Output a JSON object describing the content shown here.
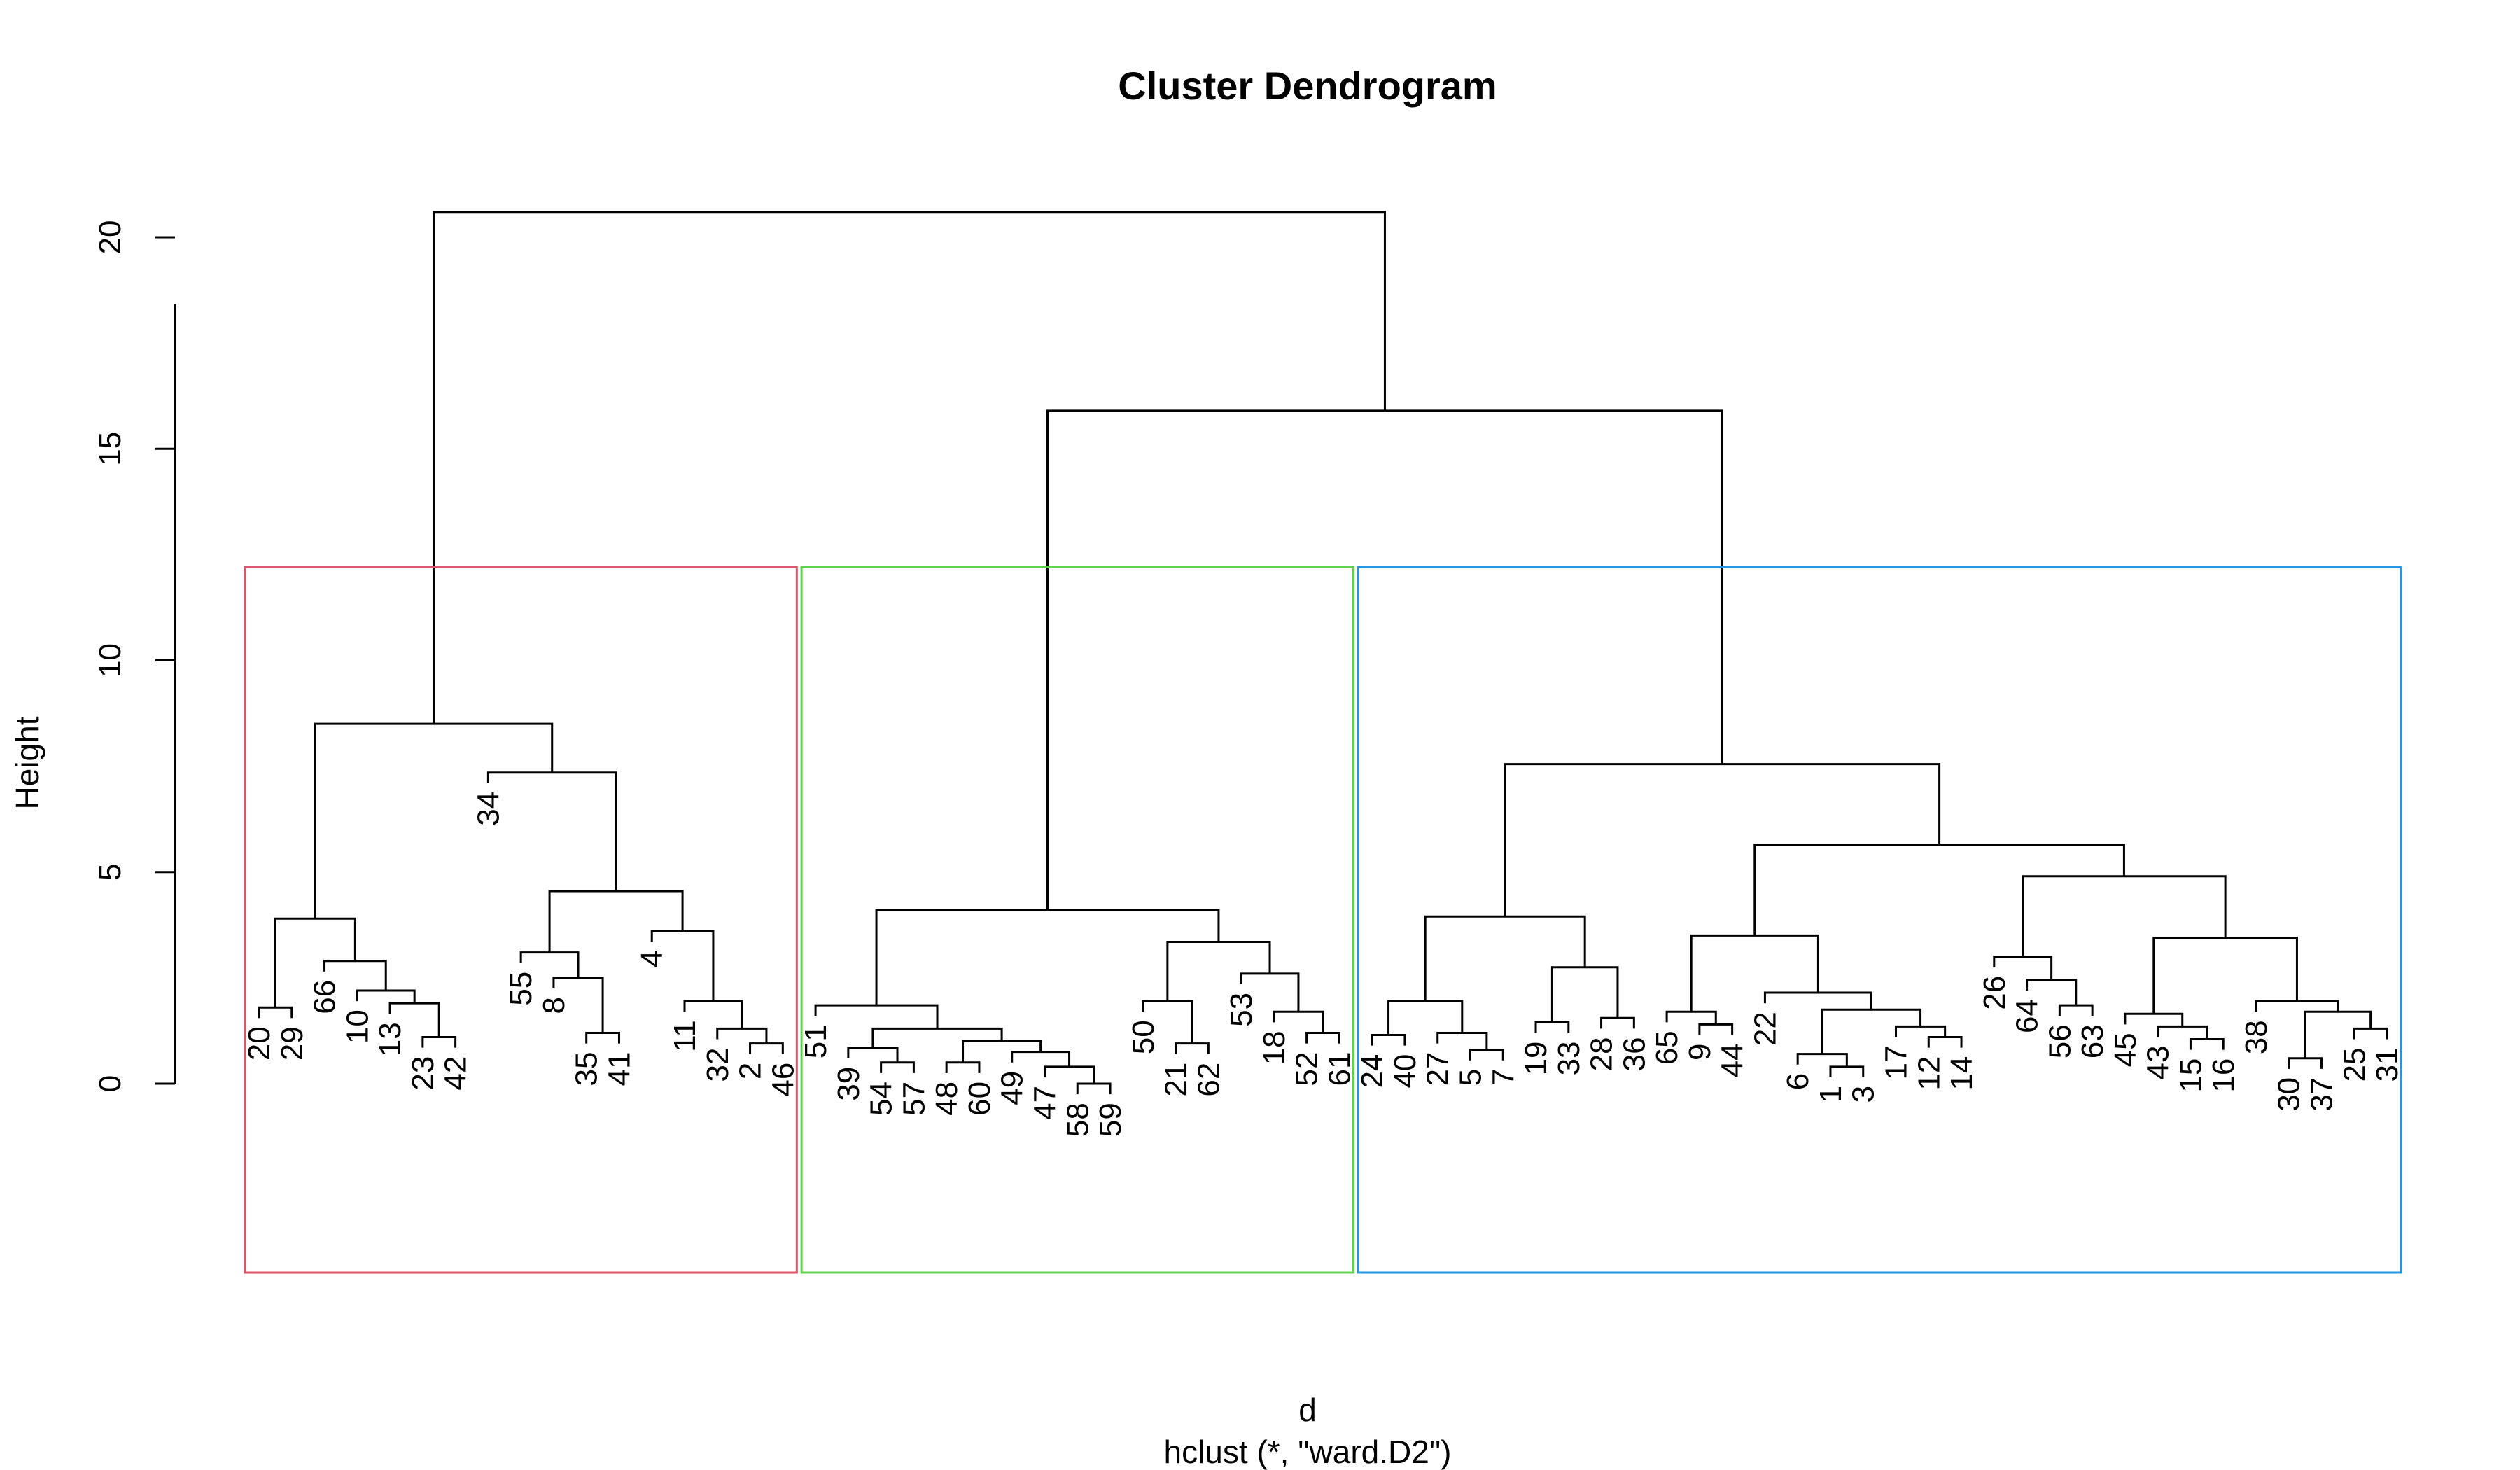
{
  "chart_data": {
    "type": "dendrogram",
    "title": "Cluster Dendrogram",
    "ylabel": "Height",
    "xlabel": "d",
    "sub": "hclust (*, \"ward.D2\")",
    "ylim": [
      0,
      21
    ],
    "yticks": [
      0,
      5,
      10,
      15,
      20
    ],
    "leaf_order": [
      "20",
      "29",
      "66",
      "10",
      "13",
      "23",
      "42",
      "34",
      "55",
      "8",
      "35",
      "41",
      "4",
      "11",
      "32",
      "2",
      "46",
      "51",
      "39",
      "54",
      "57",
      "48",
      "60",
      "49",
      "47",
      "58",
      "59",
      "50",
      "21",
      "62",
      "53",
      "18",
      "52",
      "61",
      "24",
      "40",
      "27",
      "5",
      "7",
      "19",
      "33",
      "28",
      "36",
      "65",
      "9",
      "44",
      "22",
      "6",
      "1",
      "3",
      "17",
      "12",
      "14",
      "26",
      "64",
      "56",
      "63",
      "45",
      "43",
      "15",
      "16",
      "38",
      "30",
      "37",
      "25",
      "31"
    ],
    "merges": [
      {
        "a": "23",
        "b": "42",
        "h": 1.1
      },
      {
        "a": "13",
        "b": "m1",
        "h": 1.9
      },
      {
        "a": "10",
        "b": "m2",
        "h": 2.2
      },
      {
        "a": "66",
        "b": "m3",
        "h": 2.9
      },
      {
        "a": "20",
        "b": "29",
        "h": 1.8
      },
      {
        "a": "m5",
        "b": "m4",
        "h": 3.9
      },
      {
        "a": "35",
        "b": "41",
        "h": 1.2
      },
      {
        "a": "8",
        "b": "m7",
        "h": 2.5
      },
      {
        "a": "55",
        "b": "m8",
        "h": 3.1
      },
      {
        "a": "2",
        "b": "46",
        "h": 0.95
      },
      {
        "a": "32",
        "b": "m10",
        "h": 1.3
      },
      {
        "a": "11",
        "b": "m11",
        "h": 1.95
      },
      {
        "a": "4",
        "b": "m12",
        "h": 3.6
      },
      {
        "a": "m9",
        "b": "m13",
        "h": 4.55
      },
      {
        "a": "34",
        "b": "m14",
        "h": 7.35
      },
      {
        "a": "m6",
        "b": "m15",
        "h": 8.5
      },
      {
        "a": "58",
        "b": "59",
        "h": 0.0
      },
      {
        "a": "47",
        "b": "m17",
        "h": 0.4
      },
      {
        "a": "49",
        "b": "m18",
        "h": 0.75
      },
      {
        "a": "48",
        "b": "60",
        "h": 0.5
      },
      {
        "a": "m20",
        "b": "m19",
        "h": 1.0
      },
      {
        "a": "54",
        "b": "57",
        "h": 0.5
      },
      {
        "a": "39",
        "b": "m22",
        "h": 0.85
      },
      {
        "a": "m23",
        "b": "m21",
        "h": 1.3
      },
      {
        "a": "51",
        "b": "m24",
        "h": 1.85
      },
      {
        "a": "21",
        "b": "62",
        "h": 0.95
      },
      {
        "a": "50",
        "b": "m26",
        "h": 1.95
      },
      {
        "a": "52",
        "b": "61",
        "h": 1.2
      },
      {
        "a": "18",
        "b": "m28",
        "h": 1.7
      },
      {
        "a": "53",
        "b": "m29",
        "h": 2.6
      },
      {
        "a": "m27",
        "b": "m30",
        "h": 3.35
      },
      {
        "a": "m25",
        "b": "m31",
        "h": 4.1
      },
      {
        "a": "5",
        "b": "7",
        "h": 0.8
      },
      {
        "a": "27",
        "b": "m33",
        "h": 1.2
      },
      {
        "a": "24",
        "b": "40",
        "h": 1.15
      },
      {
        "a": "m35",
        "b": "m34",
        "h": 1.95
      },
      {
        "a": "19",
        "b": "33",
        "h": 1.45
      },
      {
        "a": "28",
        "b": "36",
        "h": 1.55
      },
      {
        "a": "m37",
        "b": "m38",
        "h": 2.75
      },
      {
        "a": "m36",
        "b": "m39",
        "h": 3.95
      },
      {
        "a": "9",
        "b": "44",
        "h": 1.4
      },
      {
        "a": "65",
        "b": "m41",
        "h": 1.7
      },
      {
        "a": "1",
        "b": "3",
        "h": 0.4
      },
      {
        "a": "6",
        "b": "m43",
        "h": 0.7
      },
      {
        "a": "12",
        "b": "14",
        "h": 1.1
      },
      {
        "a": "17",
        "b": "m45",
        "h": 1.35
      },
      {
        "a": "m44",
        "b": "m46",
        "h": 1.75
      },
      {
        "a": "22",
        "b": "m47",
        "h": 2.15
      },
      {
        "a": "m42",
        "b": "m48",
        "h": 3.5
      },
      {
        "a": "56",
        "b": "63",
        "h": 1.85
      },
      {
        "a": "64",
        "b": "m50",
        "h": 2.45
      },
      {
        "a": "26",
        "b": "m51",
        "h": 3.0
      },
      {
        "a": "15",
        "b": "16",
        "h": 1.05
      },
      {
        "a": "43",
        "b": "m53",
        "h": 1.35
      },
      {
        "a": "45",
        "b": "m54",
        "h": 1.65
      },
      {
        "a": "30",
        "b": "37",
        "h": 0.6
      },
      {
        "a": "25",
        "b": "31",
        "h": 1.3
      },
      {
        "a": "m56",
        "b": "m57",
        "h": 1.7
      },
      {
        "a": "38",
        "b": "m58",
        "h": 1.95
      },
      {
        "a": "m55",
        "b": "m59",
        "h": 3.45
      },
      {
        "a": "m52",
        "b": "m60",
        "h": 4.9
      },
      {
        "a": "m49",
        "b": "m61",
        "h": 5.65
      },
      {
        "a": "m40",
        "b": "m62",
        "h": 7.55
      },
      {
        "a": "m32",
        "b": "m63",
        "h": 15.9
      },
      {
        "a": "m16",
        "b": "m64",
        "h": 20.6
      }
    ],
    "cluster_boxes": [
      {
        "from": "20",
        "to": "46",
        "color": "#DF536B"
      },
      {
        "from": "51",
        "to": "61",
        "color": "#61D04F"
      },
      {
        "from": "24",
        "to": "31",
        "color": "#2297E6"
      }
    ],
    "box_top": 12.2
  }
}
